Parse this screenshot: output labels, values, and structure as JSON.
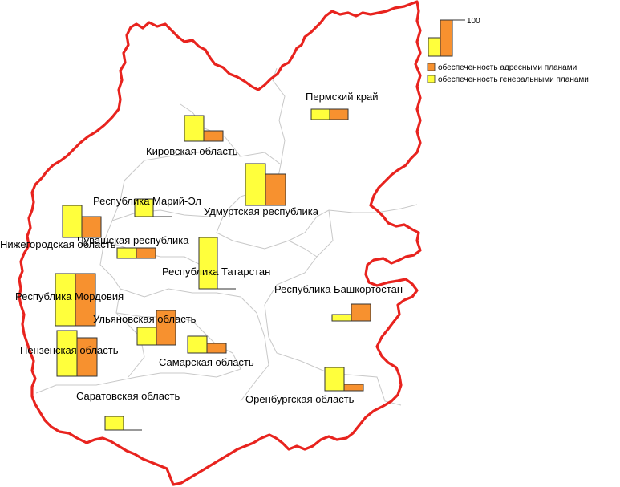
{
  "colors": {
    "border": "#e8231e",
    "internal_border": "#c8c8c8",
    "general_plans": "#ffff3c",
    "address_plans": "#f7912f",
    "bar_stroke": "#333333"
  },
  "legend": {
    "scale_max_label": "100",
    "items": [
      {
        "key": "address",
        "label": "обеспеченность адресными планами"
      },
      {
        "key": "general",
        "label": "обеспеченность генеральными планами"
      }
    ]
  },
  "chart_data": {
    "type": "bar",
    "series": [
      {
        "key": "general",
        "name": "обеспеченность генеральными планами"
      },
      {
        "key": "address",
        "name": "обеспеченность адресными планами"
      }
    ],
    "regions": [
      {
        "id": "perm",
        "name": "Пермский край",
        "general": 13,
        "address": 13
      },
      {
        "id": "kirov",
        "name": "Кировская область",
        "general": 32,
        "address": 13
      },
      {
        "id": "udmurt",
        "name": "Удмуртская республика",
        "general": 52,
        "address": 39
      },
      {
        "id": "mari",
        "name": "Республика Марий-Эл",
        "general": 22,
        "address": 0
      },
      {
        "id": "nizhny",
        "name": "Нижегородская область",
        "general": 40,
        "address": 26
      },
      {
        "id": "chuvash",
        "name": "Чувашская республика",
        "general": 13,
        "address": 13
      },
      {
        "id": "tatarstan",
        "name": "Республика Татарстан",
        "general": 64,
        "address": 0
      },
      {
        "id": "bashkort",
        "name": "Республика Башкортостан",
        "general": 8,
        "address": 21
      },
      {
        "id": "mordovia",
        "name": "Республика Мордовия",
        "general": 65,
        "address": 65
      },
      {
        "id": "ulyanovsk",
        "name": "Ульяновская область",
        "general": 22,
        "address": 43
      },
      {
        "id": "penza",
        "name": "Пензенская область",
        "general": 57,
        "address": 48
      },
      {
        "id": "samara",
        "name": "Самарская область",
        "general": 21,
        "address": 12
      },
      {
        "id": "orenburg",
        "name": "Оренбургская область",
        "general": 29,
        "address": 8
      },
      {
        "id": "saratov",
        "name": "Саратовская область",
        "general": 17,
        "address": 0
      }
    ]
  }
}
